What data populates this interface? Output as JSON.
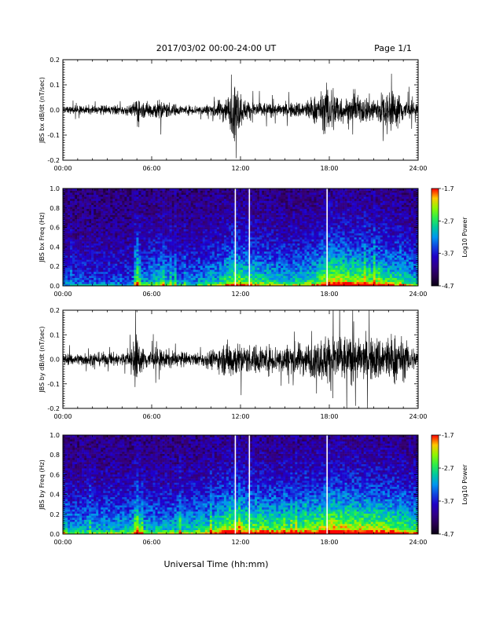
{
  "header": {
    "title": "2017/03/02  00:00-24:00 UT",
    "page": "Page 1/1"
  },
  "xlabel": "Universal Time (hh:mm)",
  "chart_data": [
    {
      "type": "line",
      "ylabel": "JBS bx dB/dt (nT/sec)",
      "xlim": [
        0,
        24
      ],
      "ylim": [
        -0.2,
        0.2
      ],
      "x_ticks": [
        "00:00",
        "06:00",
        "12:00",
        "18:00",
        "24:00"
      ],
      "y_ticks": [
        "-0.2",
        "-0.1",
        "0.0",
        "0.1",
        "0.2"
      ],
      "envelope": [
        {
          "t": 0,
          "amp": 0.025
        },
        {
          "t": 2,
          "amp": 0.03
        },
        {
          "t": 4.7,
          "amp": 0.035
        },
        {
          "t": 5.0,
          "amp": 0.13
        },
        {
          "t": 5.3,
          "amp": 0.05
        },
        {
          "t": 6.5,
          "amp": 0.07
        },
        {
          "t": 8,
          "amp": 0.03
        },
        {
          "t": 10,
          "amp": 0.04
        },
        {
          "t": 11.2,
          "amp": 0.1
        },
        {
          "t": 11.6,
          "amp": 0.2
        },
        {
          "t": 12.3,
          "amp": 0.07
        },
        {
          "t": 14.5,
          "amp": 0.04
        },
        {
          "t": 16.2,
          "amp": 0.06
        },
        {
          "t": 17.5,
          "amp": 0.12
        },
        {
          "t": 18.0,
          "amp": 0.2
        },
        {
          "t": 19,
          "amp": 0.08
        },
        {
          "t": 21.3,
          "amp": 0.1
        },
        {
          "t": 22,
          "amp": 0.15
        },
        {
          "t": 24,
          "amp": 0.03
        }
      ]
    },
    {
      "type": "heatmap",
      "ylabel": "JBS bx Freq (Hz)",
      "xlim": [
        0,
        24
      ],
      "ylim": [
        0.0,
        1.0
      ],
      "x_ticks": [
        "00:00",
        "06:00",
        "12:00",
        "18:00",
        "24:00"
      ],
      "y_ticks": [
        "0.0",
        "0.2",
        "0.4",
        "0.6",
        "0.8",
        "1.0"
      ],
      "colorbar": {
        "label": "Log10 Power",
        "range": [
          -4.7,
          -1.7
        ],
        "ticks": [
          "-1.7",
          "-2.7",
          "-3.7",
          "-4.7"
        ]
      },
      "activity": [
        {
          "t": 0,
          "a": 0.3
        },
        {
          "t": 4.7,
          "a": 0.3
        },
        {
          "t": 5.0,
          "a": 0.9
        },
        {
          "t": 5.3,
          "a": 0.4
        },
        {
          "t": 6.5,
          "a": 0.55
        },
        {
          "t": 8,
          "a": 0.35
        },
        {
          "t": 10.5,
          "a": 0.5
        },
        {
          "t": 11.6,
          "a": 0.75
        },
        {
          "t": 13,
          "a": 0.6
        },
        {
          "t": 15,
          "a": 0.5
        },
        {
          "t": 17,
          "a": 0.6
        },
        {
          "t": 18.0,
          "a": 0.85
        },
        {
          "t": 21.5,
          "a": 0.7
        },
        {
          "t": 24,
          "a": 0.5
        }
      ],
      "gaps_hours": [
        11.65,
        12.6,
        17.85
      ]
    },
    {
      "type": "line",
      "ylabel": "JBS by dB/dt (nT/sec)",
      "xlim": [
        0,
        24
      ],
      "ylim": [
        -0.2,
        0.2
      ],
      "x_ticks": [
        "00:00",
        "06:00",
        "12:00",
        "18:00",
        "24:00"
      ],
      "y_ticks": [
        "-0.2",
        "-0.1",
        "0.0",
        "0.1",
        "0.2"
      ],
      "envelope": [
        {
          "t": 0,
          "amp": 0.04
        },
        {
          "t": 2,
          "amp": 0.045
        },
        {
          "t": 4.5,
          "amp": 0.05
        },
        {
          "t": 4.9,
          "amp": 0.2
        },
        {
          "t": 5.3,
          "amp": 0.08
        },
        {
          "t": 6.5,
          "amp": 0.07
        },
        {
          "t": 9,
          "amp": 0.04
        },
        {
          "t": 10.5,
          "amp": 0.08
        },
        {
          "t": 11.4,
          "amp": 0.15
        },
        {
          "t": 12,
          "amp": 0.1
        },
        {
          "t": 14,
          "amp": 0.1
        },
        {
          "t": 17,
          "amp": 0.12
        },
        {
          "t": 18.2,
          "amp": 0.2
        },
        {
          "t": 20,
          "amp": 0.14
        },
        {
          "t": 22.5,
          "amp": 0.18
        },
        {
          "t": 24,
          "amp": 0.06
        }
      ]
    },
    {
      "type": "heatmap",
      "ylabel": "JBS by Freq (Hz)",
      "xlim": [
        0,
        24
      ],
      "ylim": [
        0.0,
        1.0
      ],
      "x_ticks": [
        "00:00",
        "06:00",
        "12:00",
        "18:00",
        "24:00"
      ],
      "y_ticks": [
        "0.0",
        "0.2",
        "0.4",
        "0.6",
        "0.8",
        "1.0"
      ],
      "colorbar": {
        "label": "Log10 Power",
        "range": [
          -4.7,
          -1.7
        ],
        "ticks": [
          "-1.7",
          "-2.7",
          "-3.7",
          "-4.7"
        ]
      },
      "activity": [
        {
          "t": 0,
          "a": 0.45
        },
        {
          "t": 4.7,
          "a": 0.5
        },
        {
          "t": 5.0,
          "a": 0.95
        },
        {
          "t": 5.3,
          "a": 0.5
        },
        {
          "t": 7.5,
          "a": 0.5
        },
        {
          "t": 10,
          "a": 0.6
        },
        {
          "t": 11.3,
          "a": 0.85
        },
        {
          "t": 13,
          "a": 0.75
        },
        {
          "t": 16,
          "a": 0.7
        },
        {
          "t": 18.2,
          "a": 0.9
        },
        {
          "t": 21.5,
          "a": 0.8
        },
        {
          "t": 24,
          "a": 0.65
        }
      ],
      "gaps_hours": [
        11.65,
        12.6,
        17.85
      ]
    }
  ]
}
